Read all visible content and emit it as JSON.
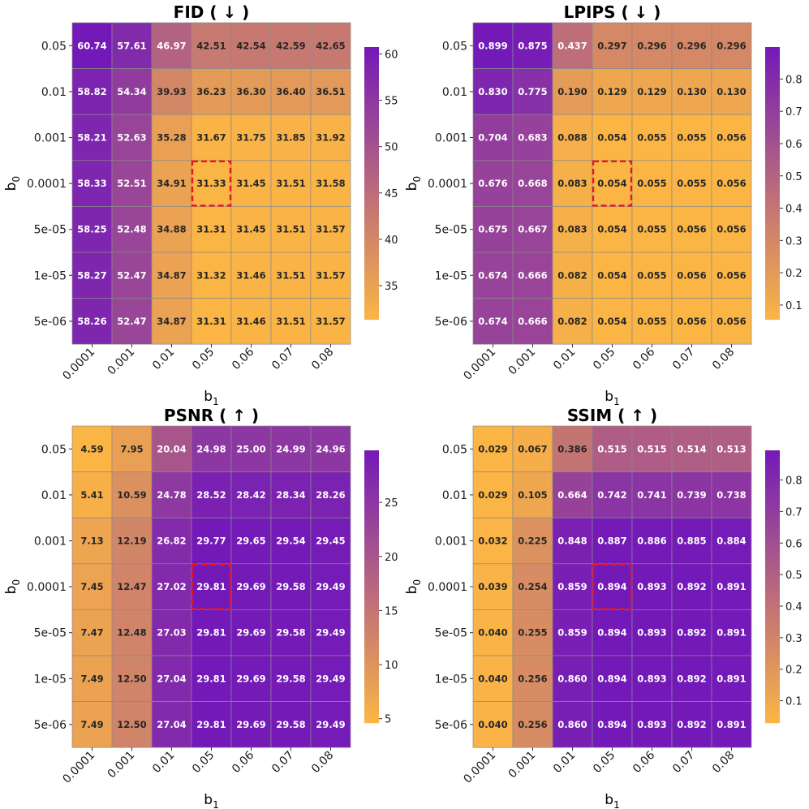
{
  "chart_data": [
    {
      "type": "heatmap",
      "title": "FID ( ↓ )",
      "xlabel": "b",
      "xlabel_sub": "1",
      "ylabel": "b",
      "ylabel_sub": "0",
      "x_categories": [
        "0.0001",
        "0.001",
        "0.01",
        "0.05",
        "0.06",
        "0.07",
        "0.08"
      ],
      "y_categories": [
        "0.05",
        "0.01",
        "0.001",
        "0.0001",
        "5e-05",
        "1e-05",
        "5e-06"
      ],
      "values": [
        [
          "60.74",
          "57.61",
          "46.97",
          "42.51",
          "42.54",
          "42.59",
          "42.65"
        ],
        [
          "58.82",
          "54.34",
          "39.93",
          "36.23",
          "36.30",
          "36.40",
          "36.51"
        ],
        [
          "58.21",
          "52.63",
          "35.28",
          "31.67",
          "31.75",
          "31.85",
          "31.92"
        ],
        [
          "58.33",
          "52.51",
          "34.91",
          "31.33",
          "31.45",
          "31.51",
          "31.58"
        ],
        [
          "58.25",
          "52.48",
          "34.88",
          "31.31",
          "31.45",
          "31.51",
          "31.57"
        ],
        [
          "58.27",
          "52.47",
          "34.87",
          "31.32",
          "31.46",
          "31.51",
          "31.57"
        ],
        [
          "58.26",
          "52.47",
          "34.87",
          "31.31",
          "31.46",
          "31.51",
          "31.57"
        ]
      ],
      "highlight": {
        "row": 3,
        "col": 3
      },
      "colorbar": {
        "min": 31.31,
        "max": 60.74,
        "ticks": [
          35,
          40,
          45,
          50,
          55,
          60
        ],
        "tick_labels": [
          "35",
          "40",
          "45",
          "50",
          "55",
          "60"
        ]
      },
      "colormap": [
        "#fbb545",
        "#7319b8"
      ]
    },
    {
      "type": "heatmap",
      "title": "LPIPS ( ↓ )",
      "xlabel": "b",
      "xlabel_sub": "1",
      "ylabel": "b",
      "ylabel_sub": "0",
      "x_categories": [
        "0.0001",
        "0.001",
        "0.01",
        "0.05",
        "0.06",
        "0.07",
        "0.08"
      ],
      "y_categories": [
        "0.05",
        "0.01",
        "0.001",
        "0.0001",
        "5e-05",
        "1e-05",
        "5e-06"
      ],
      "values": [
        [
          "0.899",
          "0.875",
          "0.437",
          "0.297",
          "0.296",
          "0.296",
          "0.296"
        ],
        [
          "0.830",
          "0.775",
          "0.190",
          "0.129",
          "0.129",
          "0.130",
          "0.130"
        ],
        [
          "0.704",
          "0.683",
          "0.088",
          "0.054",
          "0.055",
          "0.055",
          "0.056"
        ],
        [
          "0.676",
          "0.668",
          "0.083",
          "0.054",
          "0.055",
          "0.055",
          "0.056"
        ],
        [
          "0.675",
          "0.667",
          "0.083",
          "0.054",
          "0.055",
          "0.056",
          "0.056"
        ],
        [
          "0.674",
          "0.666",
          "0.082",
          "0.054",
          "0.055",
          "0.056",
          "0.056"
        ],
        [
          "0.674",
          "0.666",
          "0.082",
          "0.054",
          "0.055",
          "0.056",
          "0.056"
        ]
      ],
      "highlight": {
        "row": 3,
        "col": 3
      },
      "colorbar": {
        "min": 0.054,
        "max": 0.899,
        "ticks": [
          0.1,
          0.2,
          0.3,
          0.4,
          0.5,
          0.6,
          0.7,
          0.8
        ],
        "tick_labels": [
          "0.1",
          "0.2",
          "0.3",
          "0.4",
          "0.5",
          "0.6",
          "0.7",
          "0.8"
        ]
      },
      "colormap": [
        "#fbb545",
        "#7319b8"
      ]
    },
    {
      "type": "heatmap",
      "title": "PSNR ( ↑ )",
      "xlabel": "b",
      "xlabel_sub": "1",
      "ylabel": "b",
      "ylabel_sub": "0",
      "x_categories": [
        "0.0001",
        "0.001",
        "0.01",
        "0.05",
        "0.06",
        "0.07",
        "0.08"
      ],
      "y_categories": [
        "0.05",
        "0.01",
        "0.001",
        "0.0001",
        "5e-05",
        "1e-05",
        "5e-06"
      ],
      "values": [
        [
          "4.59",
          "7.95",
          "20.04",
          "24.98",
          "25.00",
          "24.99",
          "24.96"
        ],
        [
          "5.41",
          "10.59",
          "24.78",
          "28.52",
          "28.42",
          "28.34",
          "28.26"
        ],
        [
          "7.13",
          "12.19",
          "26.82",
          "29.77",
          "29.65",
          "29.54",
          "29.45"
        ],
        [
          "7.45",
          "12.47",
          "27.02",
          "29.81",
          "29.69",
          "29.58",
          "29.49"
        ],
        [
          "7.47",
          "12.48",
          "27.03",
          "29.81",
          "29.69",
          "29.58",
          "29.49"
        ],
        [
          "7.49",
          "12.50",
          "27.04",
          "29.81",
          "29.69",
          "29.58",
          "29.49"
        ],
        [
          "7.49",
          "12.50",
          "27.04",
          "29.81",
          "29.69",
          "29.58",
          "29.49"
        ]
      ],
      "highlight": {
        "row": 3,
        "col": 3
      },
      "colorbar": {
        "min": 4.59,
        "max": 29.81,
        "ticks": [
          5,
          10,
          15,
          20,
          25
        ],
        "tick_labels": [
          "5",
          "10",
          "15",
          "20",
          "25"
        ]
      },
      "colormap": [
        "#fbb545",
        "#7319b8"
      ]
    },
    {
      "type": "heatmap",
      "title": "SSIM ( ↑ )",
      "xlabel": "b",
      "xlabel_sub": "1",
      "ylabel": "b",
      "ylabel_sub": "0",
      "x_categories": [
        "0.0001",
        "0.001",
        "0.01",
        "0.05",
        "0.06",
        "0.07",
        "0.08"
      ],
      "y_categories": [
        "0.05",
        "0.01",
        "0.001",
        "0.0001",
        "5e-05",
        "1e-05",
        "5e-06"
      ],
      "values": [
        [
          "0.029",
          "0.067",
          "0.386",
          "0.515",
          "0.515",
          "0.514",
          "0.513"
        ],
        [
          "0.029",
          "0.105",
          "0.664",
          "0.742",
          "0.741",
          "0.739",
          "0.738"
        ],
        [
          "0.032",
          "0.225",
          "0.848",
          "0.887",
          "0.886",
          "0.885",
          "0.884"
        ],
        [
          "0.039",
          "0.254",
          "0.859",
          "0.894",
          "0.893",
          "0.892",
          "0.891"
        ],
        [
          "0.040",
          "0.255",
          "0.859",
          "0.894",
          "0.893",
          "0.892",
          "0.891"
        ],
        [
          "0.040",
          "0.256",
          "0.860",
          "0.894",
          "0.893",
          "0.892",
          "0.891"
        ],
        [
          "0.040",
          "0.256",
          "0.860",
          "0.894",
          "0.893",
          "0.892",
          "0.891"
        ]
      ],
      "highlight": {
        "row": 3,
        "col": 3
      },
      "colorbar": {
        "min": 0.029,
        "max": 0.894,
        "ticks": [
          0.1,
          0.2,
          0.3,
          0.4,
          0.5,
          0.6,
          0.7,
          0.8
        ],
        "tick_labels": [
          "0.1",
          "0.2",
          "0.3",
          "0.4",
          "0.5",
          "0.6",
          "0.7",
          "0.8"
        ]
      },
      "colormap": [
        "#fbb545",
        "#7319b8"
      ]
    }
  ]
}
